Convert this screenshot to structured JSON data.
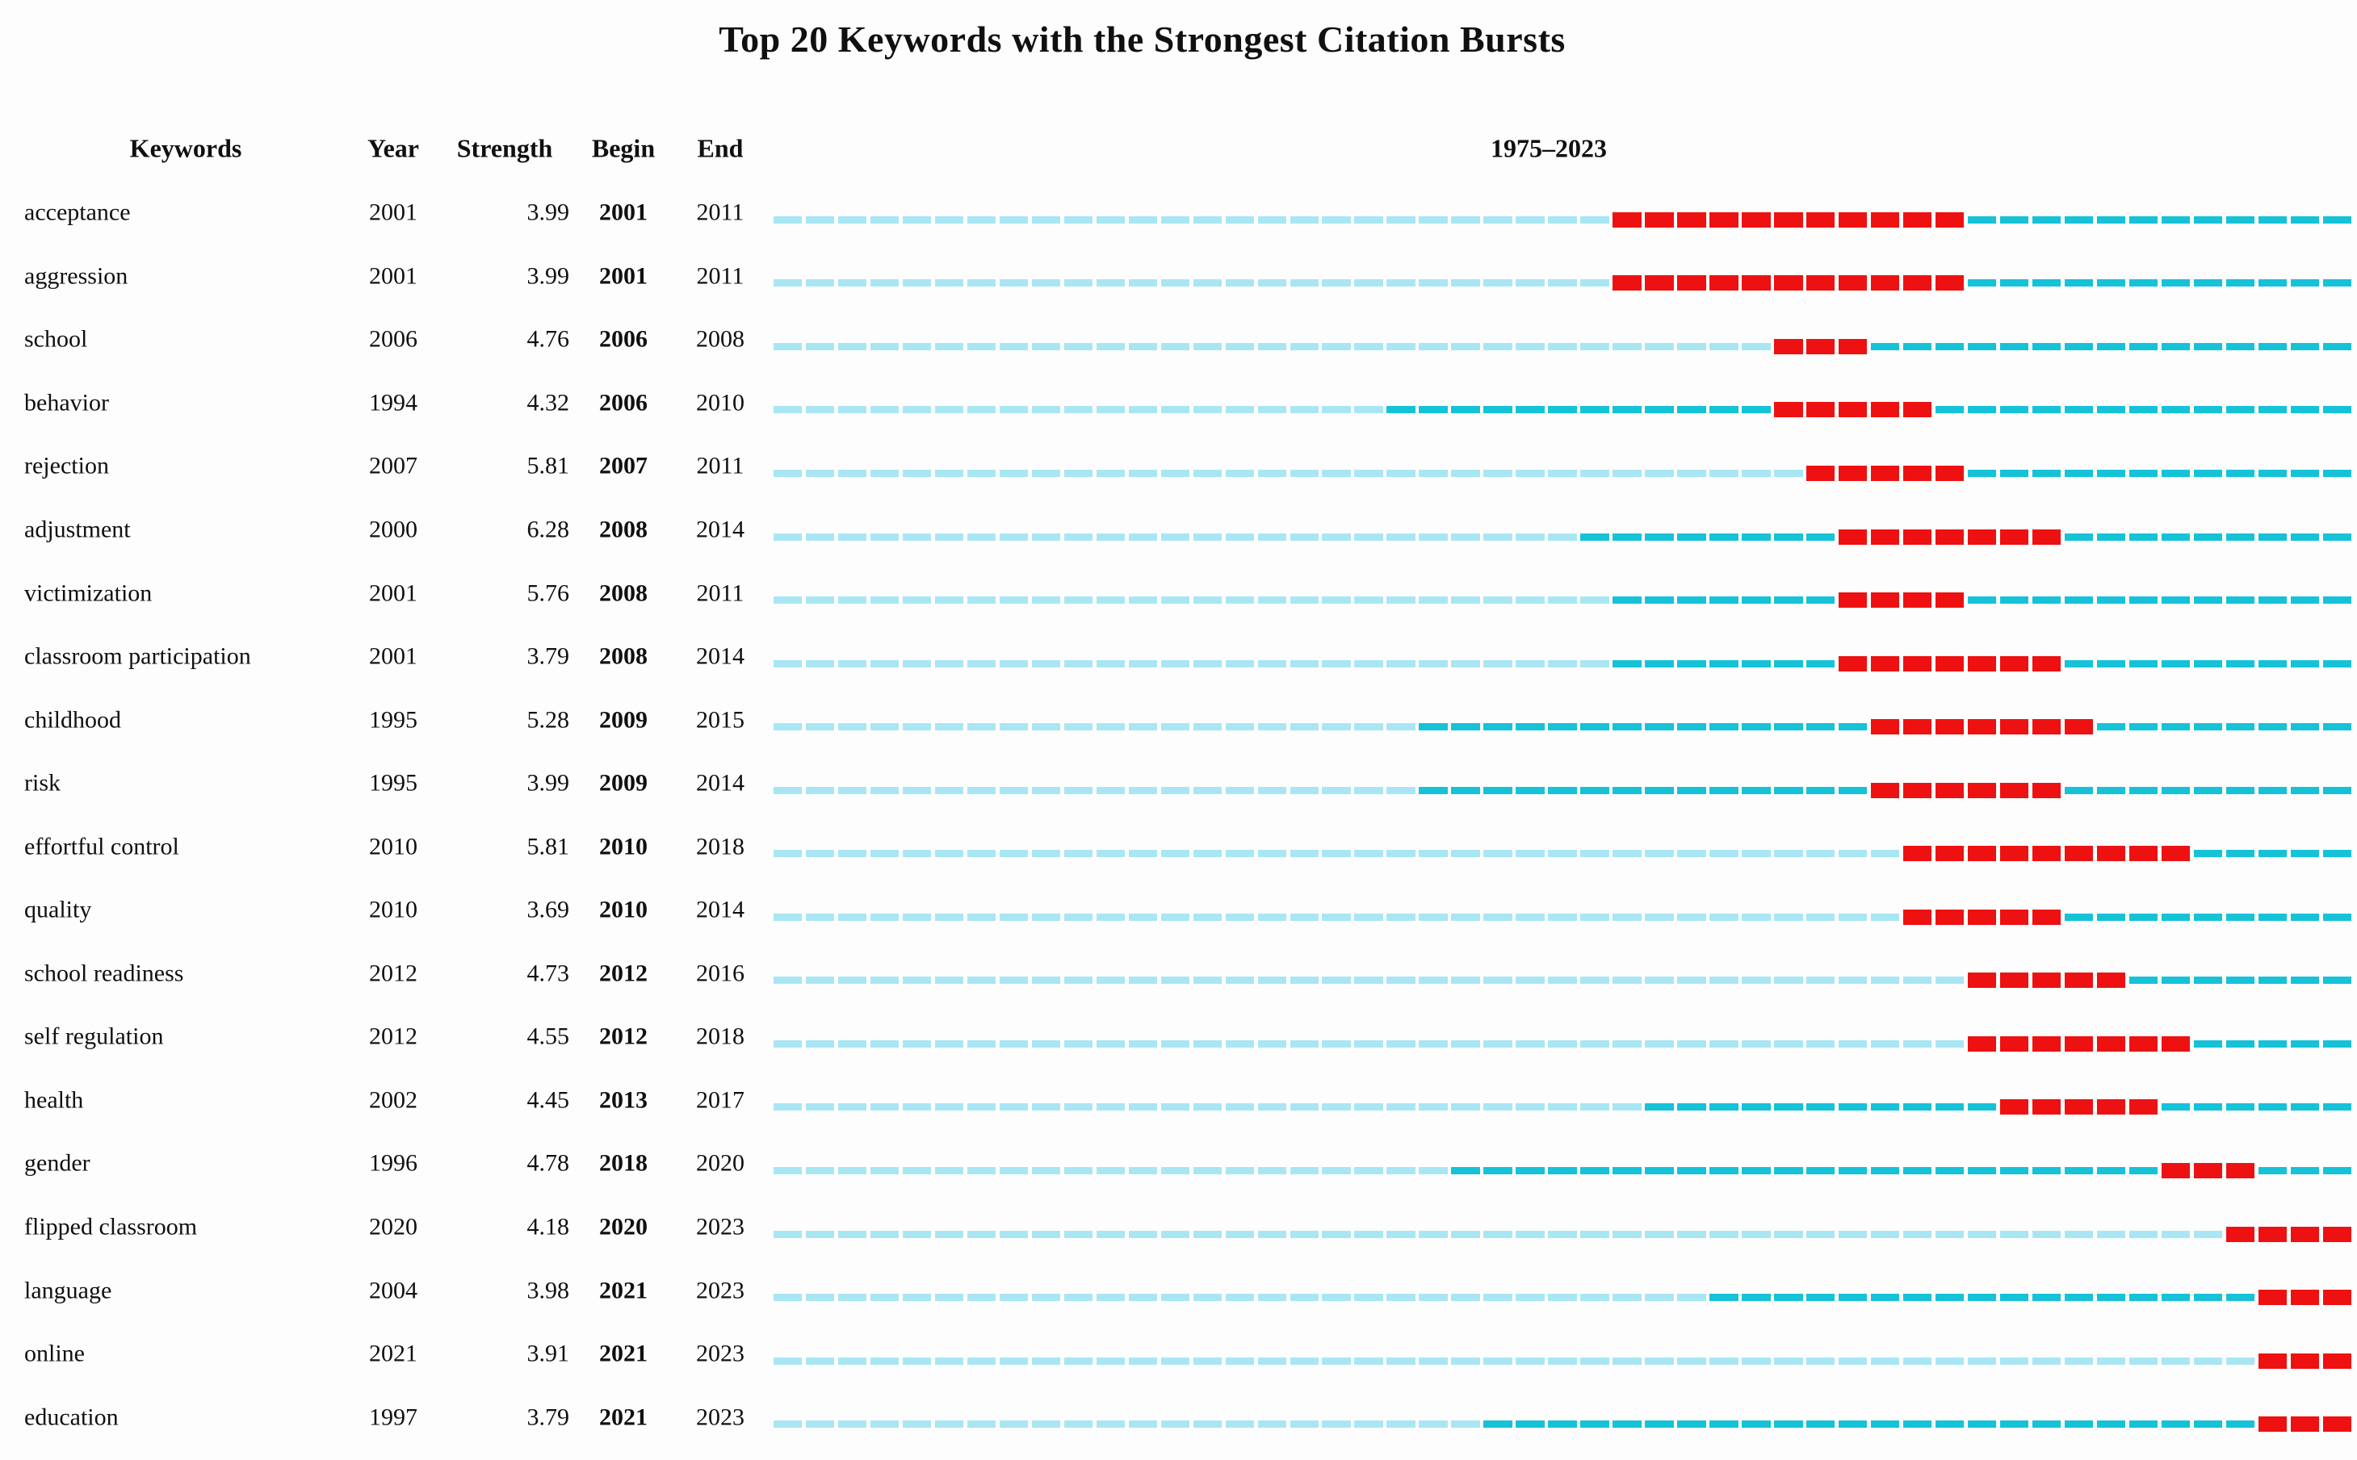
{
  "title": "Top 20 Keywords with the Strongest Citation Bursts",
  "table": {
    "headers": {
      "keywords": "Keywords",
      "year": "Year",
      "strength": "Strength",
      "begin": "Begin",
      "end": "End",
      "timeline": "1975–2023"
    }
  },
  "colors": {
    "pre_appearance_dash": "#A9E6F4",
    "active_dash": "#15C2D8",
    "burst_dash": "#EE1111",
    "background": "#fdfdfd",
    "text": "#101010"
  },
  "chart_data": {
    "type": "table",
    "subtype": "citation-burst-timeline",
    "title": "Top 20 Keywords with the Strongest Citation Bursts",
    "timeline_label": "1975–2023",
    "year_range": [
      1975,
      2023
    ],
    "columns": [
      "Keywords",
      "Year",
      "Strength",
      "Begin",
      "End"
    ],
    "legend": {
      "pre_appearance": "years before keyword first appears (light cyan)",
      "active": "keyword present, no burst (dark cyan)",
      "burst": "burst interval Begin–End (red)"
    },
    "rows": [
      {
        "keyword": "acceptance",
        "year": 2001,
        "strength": "3.99",
        "begin": 2001,
        "end": 2011
      },
      {
        "keyword": "aggression",
        "year": 2001,
        "strength": "3.99",
        "begin": 2001,
        "end": 2011
      },
      {
        "keyword": "school",
        "year": 2006,
        "strength": "4.76",
        "begin": 2006,
        "end": 2008
      },
      {
        "keyword": "behavior",
        "year": 1994,
        "strength": "4.32",
        "begin": 2006,
        "end": 2010
      },
      {
        "keyword": "rejection",
        "year": 2007,
        "strength": "5.81",
        "begin": 2007,
        "end": 2011
      },
      {
        "keyword": "adjustment",
        "year": 2000,
        "strength": "6.28",
        "begin": 2008,
        "end": 2014
      },
      {
        "keyword": "victimization",
        "year": 2001,
        "strength": "5.76",
        "begin": 2008,
        "end": 2011
      },
      {
        "keyword": "classroom participation",
        "year": 2001,
        "strength": "3.79",
        "begin": 2008,
        "end": 2014
      },
      {
        "keyword": "childhood",
        "year": 1995,
        "strength": "5.28",
        "begin": 2009,
        "end": 2015
      },
      {
        "keyword": "risk",
        "year": 1995,
        "strength": "3.99",
        "begin": 2009,
        "end": 2014
      },
      {
        "keyword": "effortful control",
        "year": 2010,
        "strength": "5.81",
        "begin": 2010,
        "end": 2018
      },
      {
        "keyword": "quality",
        "year": 2010,
        "strength": "3.69",
        "begin": 2010,
        "end": 2014
      },
      {
        "keyword": "school readiness",
        "year": 2012,
        "strength": "4.73",
        "begin": 2012,
        "end": 2016
      },
      {
        "keyword": "self regulation",
        "year": 2012,
        "strength": "4.55",
        "begin": 2012,
        "end": 2018
      },
      {
        "keyword": "health",
        "year": 2002,
        "strength": "4.45",
        "begin": 2013,
        "end": 2017
      },
      {
        "keyword": "gender",
        "year": 1996,
        "strength": "4.78",
        "begin": 2018,
        "end": 2020
      },
      {
        "keyword": "flipped classroom",
        "year": 2020,
        "strength": "4.18",
        "begin": 2020,
        "end": 2023
      },
      {
        "keyword": "language",
        "year": 2004,
        "strength": "3.98",
        "begin": 2021,
        "end": 2023
      },
      {
        "keyword": "online",
        "year": 2021,
        "strength": "3.91",
        "begin": 2021,
        "end": 2023
      },
      {
        "keyword": "education",
        "year": 1997,
        "strength": "3.79",
        "begin": 2021,
        "end": 2023
      }
    ]
  }
}
